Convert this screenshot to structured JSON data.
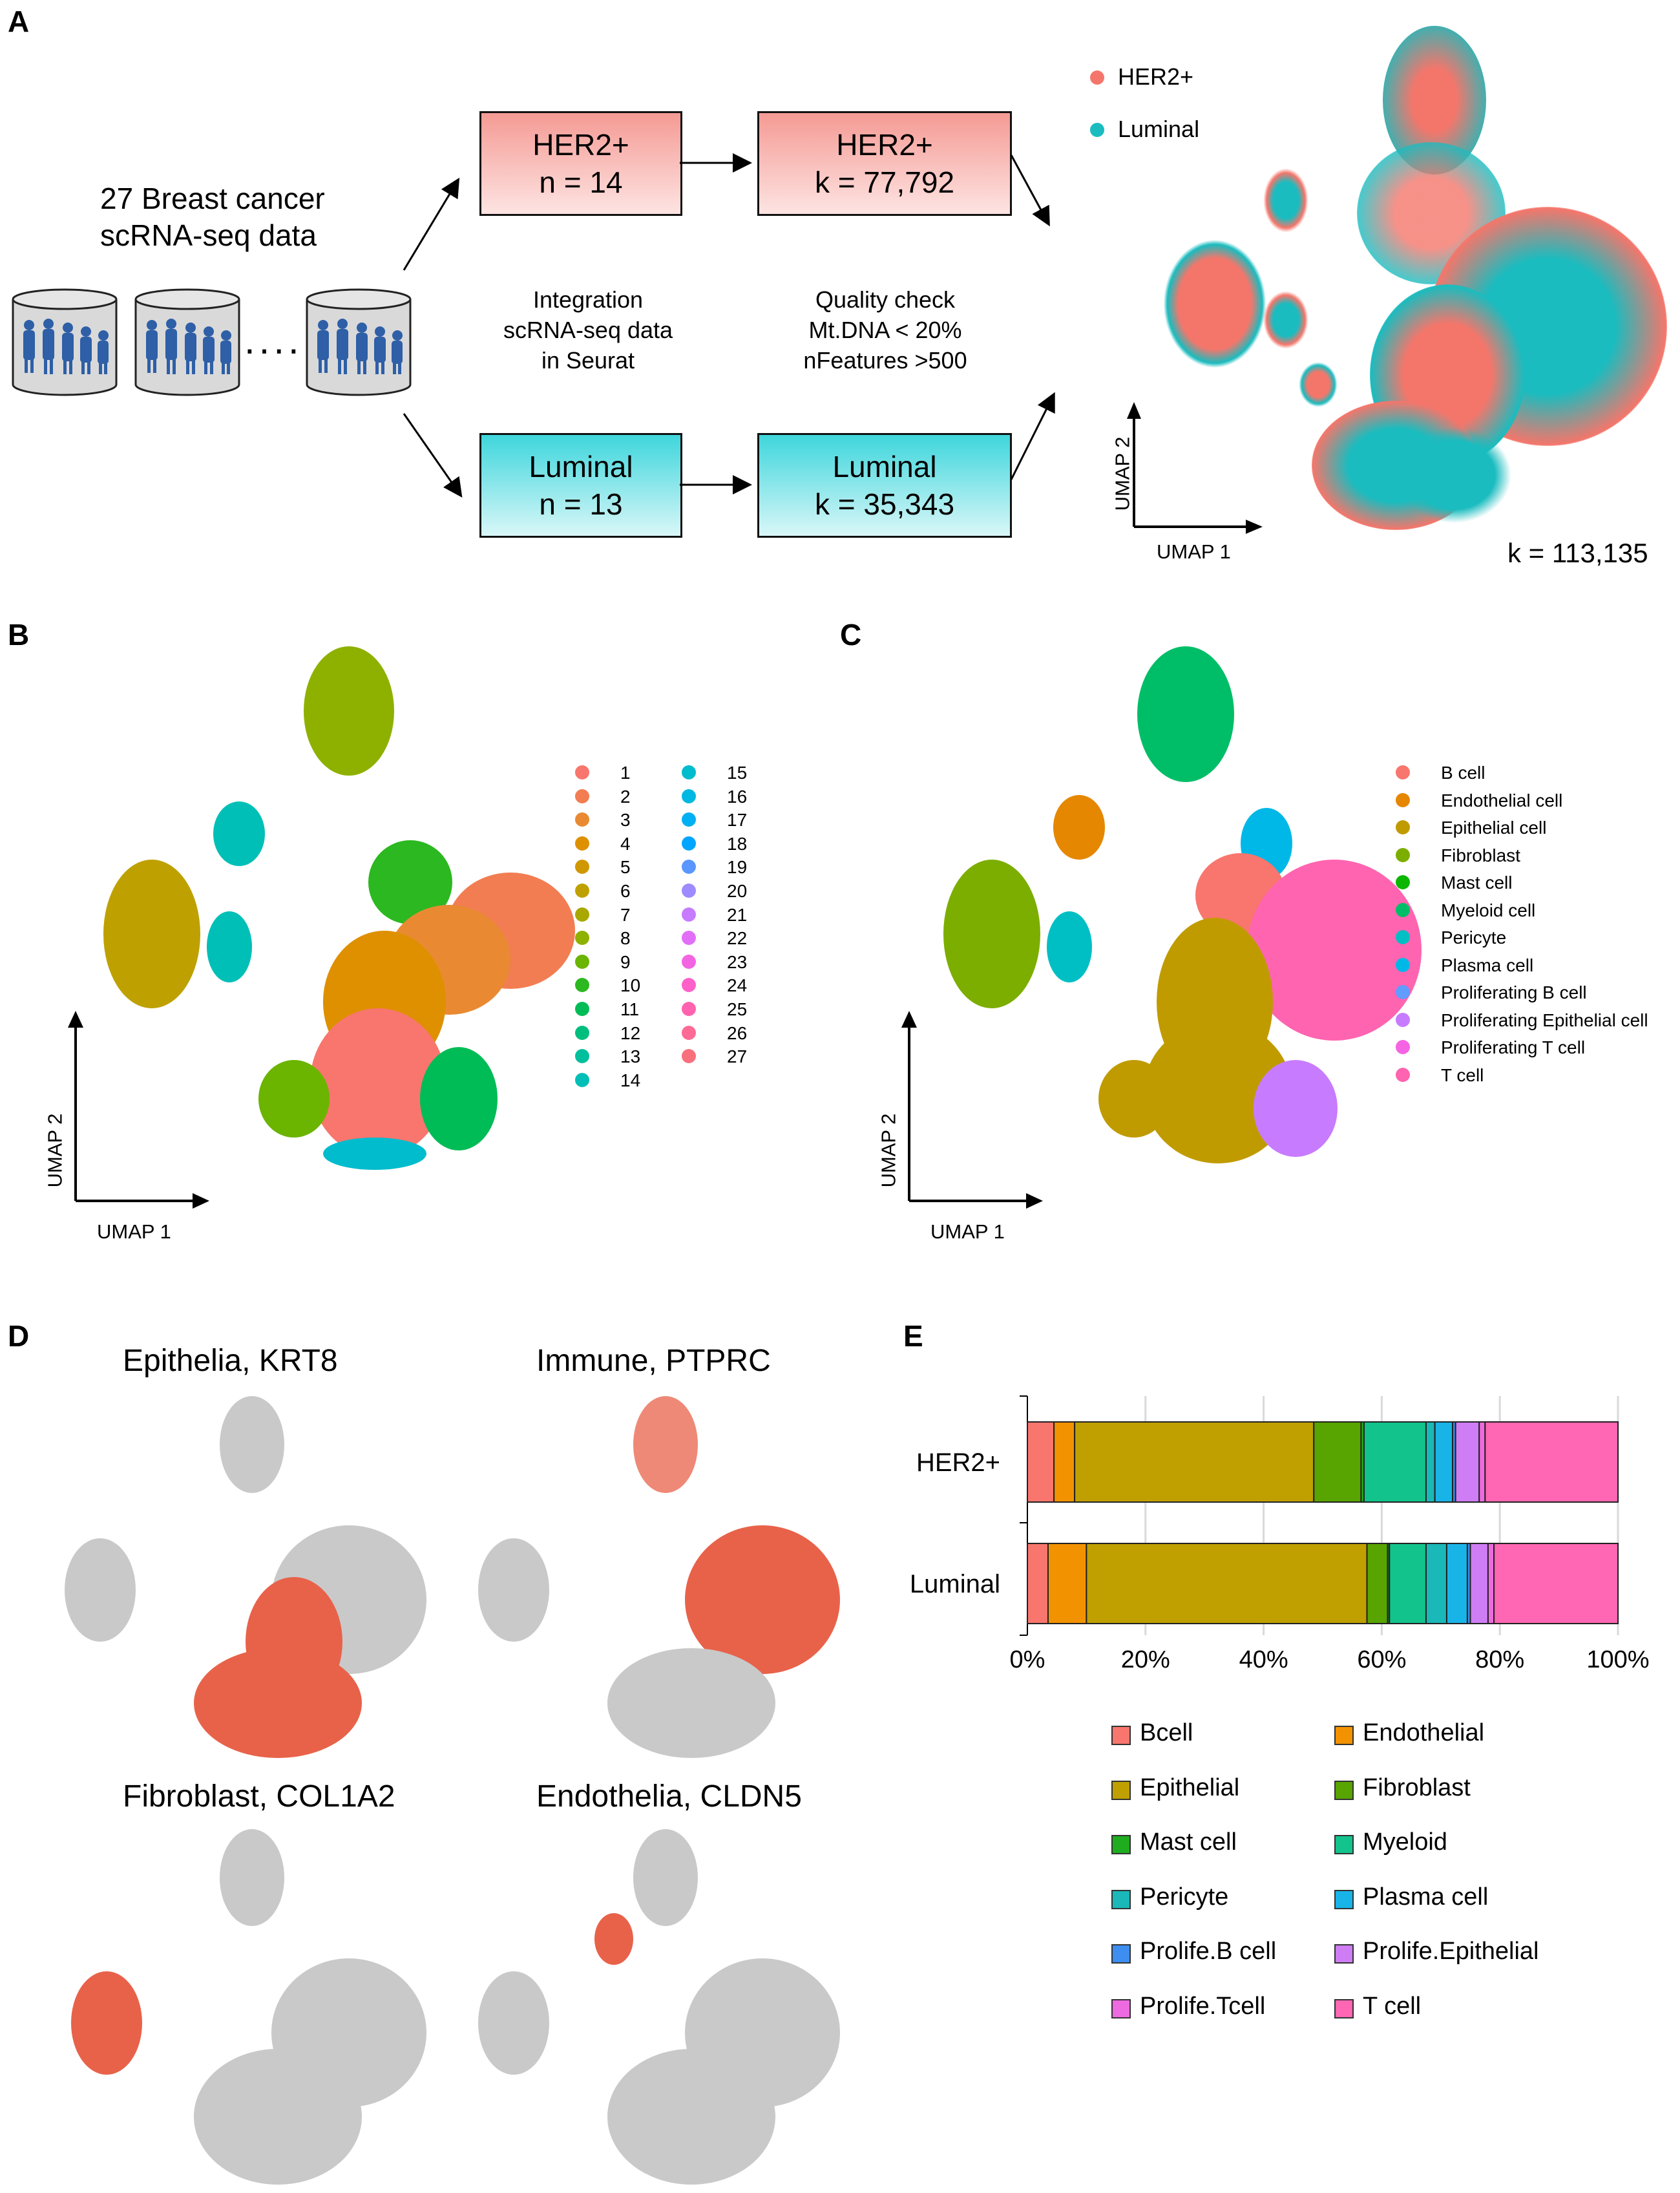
{
  "panels": {
    "a": "A",
    "b": "B",
    "c": "C",
    "d": "D",
    "e": "E"
  },
  "panel_a": {
    "source_label_1": "27 Breast cancer",
    "source_label_2": "scRNA-seq data",
    "dots": "....",
    "integration_1": "Integration",
    "integration_2": "scRNA-seq data",
    "integration_3": "in Seurat",
    "qc_1": "Quality check",
    "qc_2": "Mt.DNA < 20%",
    "qc_3": "nFeatures >500",
    "her2_n_title": "HER2+",
    "her2_n_value": "n = 14",
    "her2_k_title": "HER2+",
    "her2_k_value": "k = 77,792",
    "lum_n_title": "Luminal",
    "lum_n_value": "n = 13",
    "lum_k_title": "Luminal",
    "lum_k_value": "k = 35,343",
    "legend": [
      {
        "label": "HER2+",
        "color": "#f4766b"
      },
      {
        "label": "Luminal",
        "color": "#1abcbf"
      }
    ],
    "umap_x": "UMAP 1",
    "umap_y": "UMAP 2",
    "total": "k = 113,135"
  },
  "panel_b": {
    "umap_x": "UMAP 1",
    "umap_y": "UMAP 2",
    "clusters_col1": [
      {
        "label": "1",
        "color": "#f8766d"
      },
      {
        "label": "2",
        "color": "#f27d52"
      },
      {
        "label": "3",
        "color": "#e98a33"
      },
      {
        "label": "4",
        "color": "#de9000"
      },
      {
        "label": "5",
        "color": "#cf9800"
      },
      {
        "label": "6",
        "color": "#bea100"
      },
      {
        "label": "7",
        "color": "#a9a800"
      },
      {
        "label": "8",
        "color": "#8eb100"
      },
      {
        "label": "9",
        "color": "#6bb400"
      },
      {
        "label": "10",
        "color": "#2cb820"
      },
      {
        "label": "11",
        "color": "#00bc56"
      },
      {
        "label": "12",
        "color": "#00be7d"
      },
      {
        "label": "13",
        "color": "#00bf9c"
      },
      {
        "label": "14",
        "color": "#00bfb7"
      }
    ],
    "clusters_col2": [
      {
        "label": "15",
        "color": "#00bccd"
      },
      {
        "label": "16",
        "color": "#00b8e1"
      },
      {
        "label": "17",
        "color": "#00b0f2"
      },
      {
        "label": "18",
        "color": "#00a5ff"
      },
      {
        "label": "19",
        "color": "#5a96ff"
      },
      {
        "label": "20",
        "color": "#9d8bff"
      },
      {
        "label": "21",
        "color": "#c77cff"
      },
      {
        "label": "22",
        "color": "#e26ef7"
      },
      {
        "label": "23",
        "color": "#f364e2"
      },
      {
        "label": "24",
        "color": "#fd61c9"
      },
      {
        "label": "25",
        "color": "#ff63b0"
      },
      {
        "label": "26",
        "color": "#fe6a96"
      },
      {
        "label": "27",
        "color": "#f9707d"
      }
    ]
  },
  "panel_c": {
    "umap_x": "UMAP 1",
    "umap_y": "UMAP 2",
    "cell_types": [
      {
        "label": "B cell",
        "color": "#f8766d"
      },
      {
        "label": "Endothelial cell",
        "color": "#e58700"
      },
      {
        "label": "Epithelial cell",
        "color": "#c09b00"
      },
      {
        "label": "Fibroblast",
        "color": "#7cae00"
      },
      {
        "label": "Mast cell",
        "color": "#0cb702"
      },
      {
        "label": "Myeloid cell",
        "color": "#00be67"
      },
      {
        "label": "Pericyte",
        "color": "#00bfc4"
      },
      {
        "label": "Plasma cell",
        "color": "#00b8e7"
      },
      {
        "label": "Proliferating B cell",
        "color": "#619cff"
      },
      {
        "label": "Proliferating Epithelial cell",
        "color": "#c77cff"
      },
      {
        "label": "Proliferating T cell",
        "color": "#f564e3"
      },
      {
        "label": "T cell",
        "color": "#ff64b0"
      }
    ]
  },
  "panel_d": {
    "titles": [
      "Epithelia, KRT8",
      "Immune, PTPRC",
      "Fibroblast, COL1A2",
      "Endothelia, CLDN5"
    ],
    "gray": "#c9c9c9",
    "expr": "#e8624a"
  },
  "chart_data": {
    "type": "bar",
    "orientation": "horizontal-stacked-percent",
    "categories": [
      "HER2+",
      "Luminal"
    ],
    "xlim": [
      0,
      100
    ],
    "xticks": [
      "0%",
      "20%",
      "40%",
      "60%",
      "80%",
      "100%"
    ],
    "series": [
      {
        "name": "Bcell",
        "color": "#f8766d",
        "values": [
          4.5,
          3.5
        ]
      },
      {
        "name": "Endothelial",
        "color": "#f39200",
        "values": [
          3.5,
          6.5
        ]
      },
      {
        "name": "Epithelial",
        "color": "#c0a000",
        "values": [
          40.5,
          47.5
        ]
      },
      {
        "name": "Fibroblast",
        "color": "#58a400",
        "values": [
          8.0,
          3.5
        ]
      },
      {
        "name": "Mast cell",
        "color": "#1fad1f",
        "values": [
          0.5,
          0.3
        ]
      },
      {
        "name": "Myeloid",
        "color": "#12c38c",
        "values": [
          10.5,
          6.2
        ]
      },
      {
        "name": "Pericyte",
        "color": "#1ab8b8",
        "values": [
          1.5,
          3.5
        ]
      },
      {
        "name": "Plasma cell",
        "color": "#18b4e8",
        "values": [
          3.0,
          3.5
        ]
      },
      {
        "name": "Prolife.B cell",
        "color": "#3d8ef0",
        "values": [
          0.5,
          0.5
        ]
      },
      {
        "name": "Prolife.Epithelial",
        "color": "#cf7df5",
        "values": [
          4.0,
          3.0
        ]
      },
      {
        "name": "Prolife.Tcell",
        "color": "#ee6ae0",
        "values": [
          1.0,
          1.0
        ]
      },
      {
        "name": "T cell",
        "color": "#ff66b3",
        "values": [
          22.5,
          21.0
        ]
      }
    ]
  }
}
